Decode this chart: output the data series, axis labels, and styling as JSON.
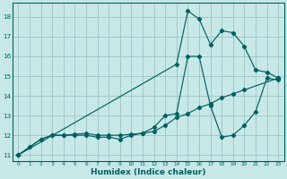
{
  "title": "",
  "xlabel": "Humidex (Indice chaleur)",
  "ylabel": "",
  "bg_color": "#c8e8e8",
  "grid_color": "#a0c8c8",
  "line_color": "#006060",
  "xlim": [
    -0.5,
    23.5
  ],
  "ylim": [
    10.7,
    18.7
  ],
  "yticks": [
    11,
    12,
    13,
    14,
    15,
    16,
    17,
    18
  ],
  "xticks": [
    0,
    1,
    2,
    3,
    4,
    5,
    6,
    7,
    8,
    9,
    10,
    11,
    12,
    13,
    14,
    15,
    16,
    17,
    18,
    19,
    20,
    21,
    22,
    23
  ],
  "line1_x": [
    0,
    2,
    3,
    4,
    5,
    6,
    7,
    8,
    9,
    10,
    11,
    12,
    13,
    14,
    15,
    16,
    17,
    18,
    19,
    20,
    23
  ],
  "line1_y": [
    11.0,
    11.8,
    12.0,
    12.0,
    12.05,
    12.1,
    12.0,
    12.0,
    12.0,
    12.05,
    12.1,
    12.2,
    12.5,
    12.9,
    13.1,
    13.4,
    13.6,
    13.9,
    14.1,
    14.3,
    14.9
  ],
  "line2_x": [
    0,
    1,
    2,
    3,
    4,
    5,
    6,
    7,
    8,
    9,
    10,
    11,
    12,
    13,
    14,
    15,
    16,
    17,
    18,
    19,
    20,
    21,
    22,
    23
  ],
  "line2_y": [
    11.0,
    11.4,
    11.8,
    12.0,
    12.0,
    12.0,
    12.0,
    11.9,
    11.9,
    11.8,
    12.0,
    12.1,
    12.4,
    13.0,
    13.1,
    16.0,
    16.0,
    13.5,
    11.9,
    12.0,
    12.5,
    13.2,
    14.9,
    14.8
  ],
  "line3_x": [
    0,
    14,
    15,
    16,
    17,
    18,
    19,
    20,
    21,
    22,
    23
  ],
  "line3_y": [
    11.0,
    15.6,
    18.3,
    17.9,
    16.6,
    17.3,
    17.2,
    16.5,
    15.3,
    15.2,
    14.9
  ]
}
